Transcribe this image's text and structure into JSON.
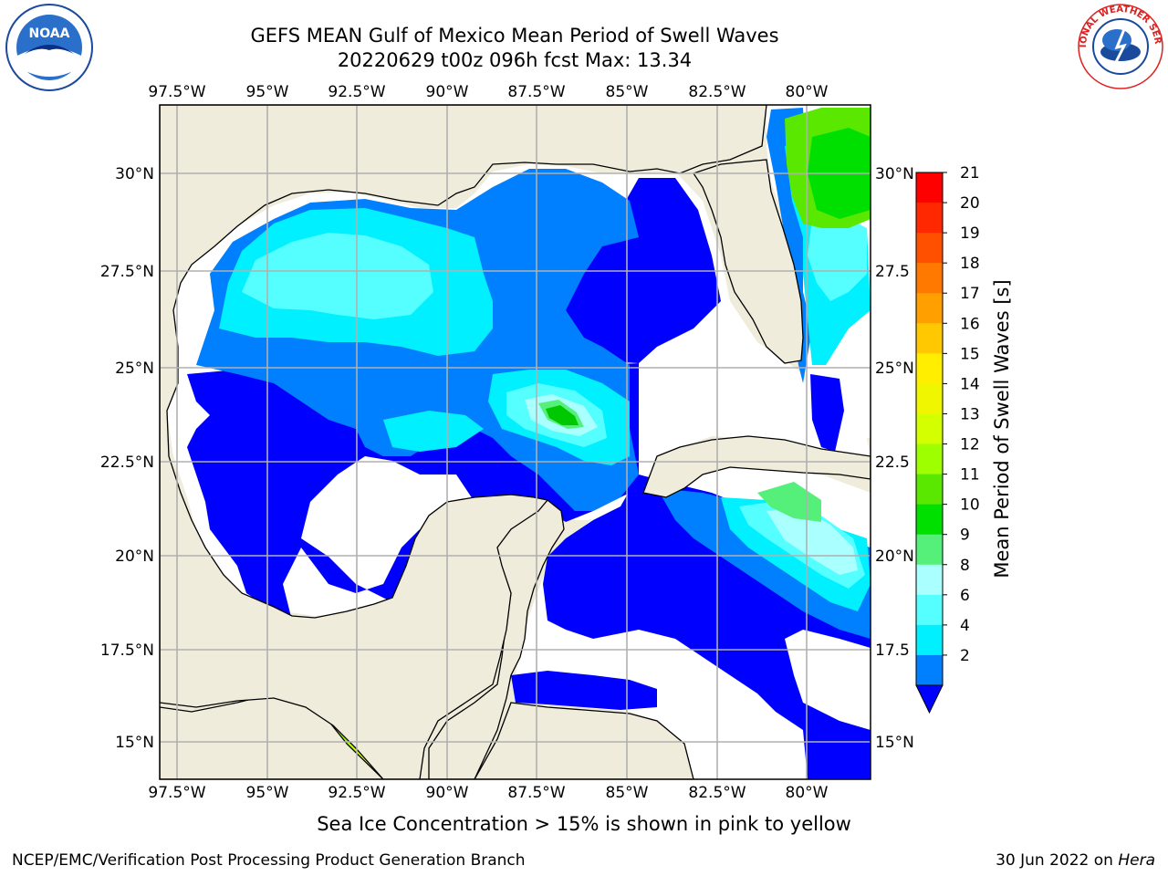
{
  "title": {
    "line1": "GEFS MEAN Gulf of Mexico Mean Period of Swell Waves",
    "line2": "20220629 t00z 096h fcst   Max: 13.34"
  },
  "map": {
    "lon_labels": [
      "97.5°W",
      "95°W",
      "92.5°W",
      "90°W",
      "87.5°W",
      "85°W",
      "82.5°W",
      "80°W"
    ],
    "lat_labels_left": [
      "30°N",
      "27.5°N",
      "25°N",
      "22.5°N",
      "20°N",
      "17.5°N",
      "15°N"
    ],
    "lat_labels_right": [
      "30°N",
      "27.5",
      "25°N",
      "22.5",
      "20°N",
      "17.5",
      "15°N"
    ],
    "colors": {
      "land": "#efecdc",
      "no_data": "#ffffff",
      "grid": "#b0b0b0"
    }
  },
  "colorbar": {
    "title": "Mean Period of Swell Waves [s]",
    "labels": [
      "21",
      "20",
      "19",
      "18",
      "17",
      "16",
      "15",
      "14",
      "13",
      "12",
      "11",
      "10",
      "9",
      "8",
      "6",
      "4",
      "2"
    ],
    "bands_top_to_bottom": [
      "#ff0000",
      "#ff2800",
      "#ff5000",
      "#ff7800",
      "#ffa000",
      "#ffc800",
      "#ffee00",
      "#f0f600",
      "#d4ff00",
      "#9eff00",
      "#5be800",
      "#00e000",
      "#55f07a",
      "#aaffff",
      "#55ffff",
      "#00f0ff",
      "#0080ff"
    ],
    "extend_color": "#0000ff"
  },
  "footer": {
    "note": "Sea Ice Concentration > 15% is shown in pink to yellow",
    "left": "NCEP/EMC/Verification Post Processing Product Generation Branch",
    "right_date": "30 Jun 2022 on ",
    "right_machine": "Hera"
  },
  "logos": {
    "noaa": "NOAA",
    "nws": "NATIONAL WEATHER SERVICE"
  }
}
